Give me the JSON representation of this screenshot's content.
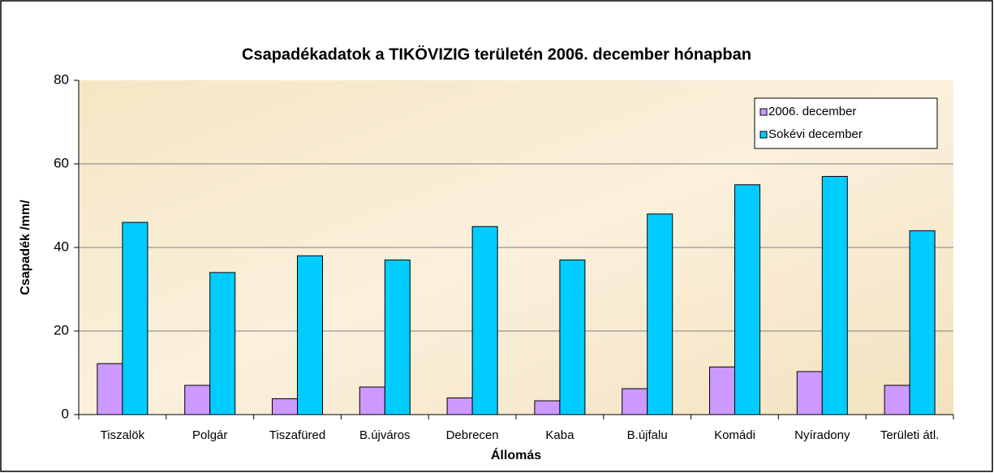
{
  "chart_data": {
    "type": "bar",
    "title": "Csapadékadatok a TIKÖVIZIG területén 2006. december hónapban",
    "x_label": "Állomás",
    "y_label": "Csapadék /mm/",
    "categories": [
      "Tiszalök",
      "Polgár",
      "Tiszafüred",
      "B.újváros",
      "Debrecen",
      "Kaba",
      "B.újfalu",
      "Komádi",
      "Nyíradony",
      "Területi átl."
    ],
    "series": [
      {
        "name": "2006. december",
        "color": "#cc99ff",
        "values": [
          12.2,
          7,
          3.8,
          6.6,
          4,
          3.3,
          6.2,
          11.4,
          10.3,
          7
        ]
      },
      {
        "name": "Sokévi december",
        "color": "#00ccff",
        "values": [
          46,
          34,
          38,
          37,
          45,
          37,
          48,
          55,
          57,
          44
        ]
      }
    ],
    "ylim": [
      0,
      80
    ],
    "yticks": [
      0,
      20,
      40,
      60,
      80
    ],
    "grid": true,
    "legend": "upper right"
  }
}
